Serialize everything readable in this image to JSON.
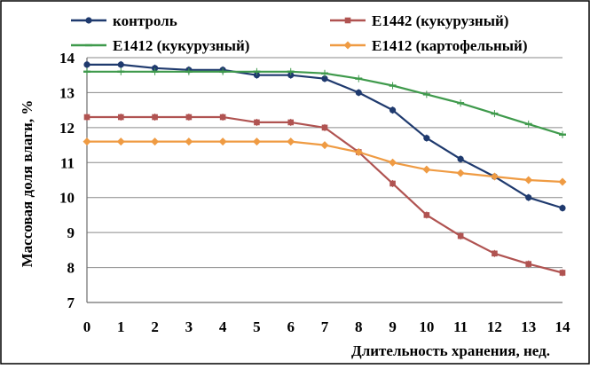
{
  "chart_data": {
    "type": "line",
    "title": "",
    "xlabel": "Длительность хранения, нед.",
    "ylabel": "Массовая доля влаги, %",
    "x": [
      0,
      1,
      2,
      3,
      4,
      5,
      6,
      7,
      8,
      9,
      10,
      11,
      12,
      13,
      14
    ],
    "xlim": [
      0,
      14
    ],
    "ylim": [
      7,
      14
    ],
    "yticks": [
      7,
      8,
      9,
      10,
      11,
      12,
      13,
      14
    ],
    "grid": true,
    "legend_position": "top",
    "series": [
      {
        "name": "контроль",
        "color": "#1f3a6e",
        "marker": "circle",
        "values": [
          13.8,
          13.8,
          13.7,
          13.65,
          13.65,
          13.5,
          13.5,
          13.4,
          13.0,
          12.5,
          11.7,
          11.1,
          10.6,
          10.0,
          9.7
        ]
      },
      {
        "name": "Е1442 (кукурузный)",
        "color": "#b05351",
        "marker": "square",
        "values": [
          12.3,
          12.3,
          12.3,
          12.3,
          12.3,
          12.15,
          12.15,
          12.0,
          11.3,
          10.4,
          9.5,
          8.9,
          8.4,
          8.1,
          7.85
        ]
      },
      {
        "name": "Е1412 (кукурузный)",
        "color": "#3f9a4c",
        "marker": "dash",
        "values": [
          13.6,
          13.6,
          13.6,
          13.6,
          13.6,
          13.6,
          13.6,
          13.55,
          13.4,
          13.2,
          12.95,
          12.7,
          12.4,
          12.1,
          11.8
        ]
      },
      {
        "name": "Е1412 (картофельный)",
        "color": "#ef9b43",
        "marker": "diamond",
        "values": [
          11.6,
          11.6,
          11.6,
          11.6,
          11.6,
          11.6,
          11.6,
          11.5,
          11.3,
          11.0,
          10.8,
          10.7,
          10.6,
          10.5,
          10.45
        ]
      }
    ]
  }
}
